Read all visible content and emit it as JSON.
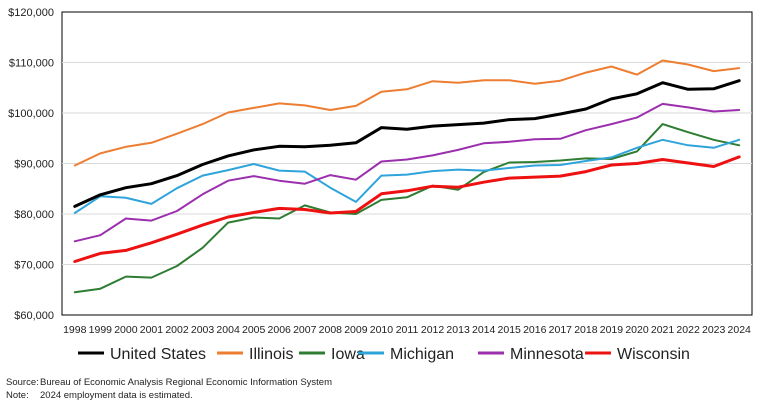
{
  "chart_data": {
    "type": "line",
    "title": "",
    "xlabel": "",
    "ylabel": "",
    "ylim": [
      60000,
      120000
    ],
    "yticks": [
      "$60,000",
      "$70,000",
      "$80,000",
      "$90,000",
      "$100,000",
      "$110,000",
      "$120,000"
    ],
    "ytick_values": [
      60000,
      70000,
      80000,
      90000,
      100000,
      110000,
      120000
    ],
    "x": [
      "1998",
      "1999",
      "2000",
      "2001",
      "2002",
      "2003",
      "2004",
      "2005",
      "2006",
      "2007",
      "2008",
      "2009",
      "2010",
      "2011",
      "2012",
      "2013",
      "2014",
      "2015",
      "2016",
      "2017",
      "2018",
      "2019",
      "2020",
      "2021",
      "2022",
      "2023",
      "2024"
    ],
    "grid": "horizontal",
    "legend_position": "bottom",
    "series": [
      {
        "name": "United States",
        "color": "#000000",
        "width": 3,
        "values": [
          81500,
          83800,
          85200,
          86000,
          87600,
          89800,
          91500,
          92700,
          93400,
          93300,
          93600,
          94100,
          97100,
          96800,
          97400,
          97700,
          98000,
          98700,
          98900,
          99800,
          100800,
          102800,
          103800,
          106000,
          104700,
          104800,
          106400
        ]
      },
      {
        "name": "Illinois",
        "color": "#ED7D31",
        "width": 2,
        "values": [
          89600,
          92000,
          93300,
          94100,
          95900,
          97800,
          100100,
          101000,
          101900,
          101500,
          100600,
          101400,
          104200,
          104700,
          106300,
          106000,
          106500,
          106500,
          105800,
          106400,
          108000,
          109200,
          107600,
          110400,
          109600,
          108300,
          108900
        ]
      },
      {
        "name": "Iowa",
        "color": "#2E7D32",
        "width": 2,
        "values": [
          64500,
          65200,
          67600,
          67400,
          69700,
          73300,
          78300,
          79300,
          79100,
          81700,
          80300,
          80000,
          82800,
          83300,
          85600,
          84800,
          88300,
          90200,
          90300,
          90600,
          91000,
          90900,
          92400,
          97800,
          96200,
          94700,
          93600
        ]
      },
      {
        "name": "Michigan",
        "color": "#2FA4DB",
        "width": 2,
        "values": [
          80200,
          83500,
          83200,
          82000,
          85100,
          87600,
          88700,
          89900,
          88600,
          88400,
          85200,
          82400,
          87600,
          87800,
          88500,
          88800,
          88600,
          89100,
          89600,
          89700,
          90500,
          91200,
          93100,
          94700,
          93600,
          93100,
          94700
        ]
      },
      {
        "name": "Minnesota",
        "color": "#9B2FAE",
        "width": 2,
        "values": [
          74600,
          75800,
          79100,
          78700,
          80600,
          83900,
          86600,
          87500,
          86600,
          86000,
          87700,
          86800,
          90400,
          90800,
          91600,
          92700,
          94000,
          94300,
          94800,
          94900,
          96600,
          97800,
          99100,
          101800,
          101100,
          100300,
          100600
        ]
      },
      {
        "name": "Wisconsin",
        "color": "#EE1111",
        "width": 3,
        "values": [
          70600,
          72200,
          72800,
          74300,
          76000,
          77800,
          79400,
          80300,
          81100,
          80900,
          80200,
          80500,
          84000,
          84600,
          85500,
          85300,
          86300,
          87100,
          87300,
          87500,
          88400,
          89700,
          90000,
          90800,
          90100,
          89400,
          91300
        ]
      }
    ]
  },
  "source_label": "Source:",
  "source_text": "Bureau of Economic Analysis Regional Economic Information System",
  "note_label": "Note:",
  "note_text": "2024 employment data is estimated."
}
